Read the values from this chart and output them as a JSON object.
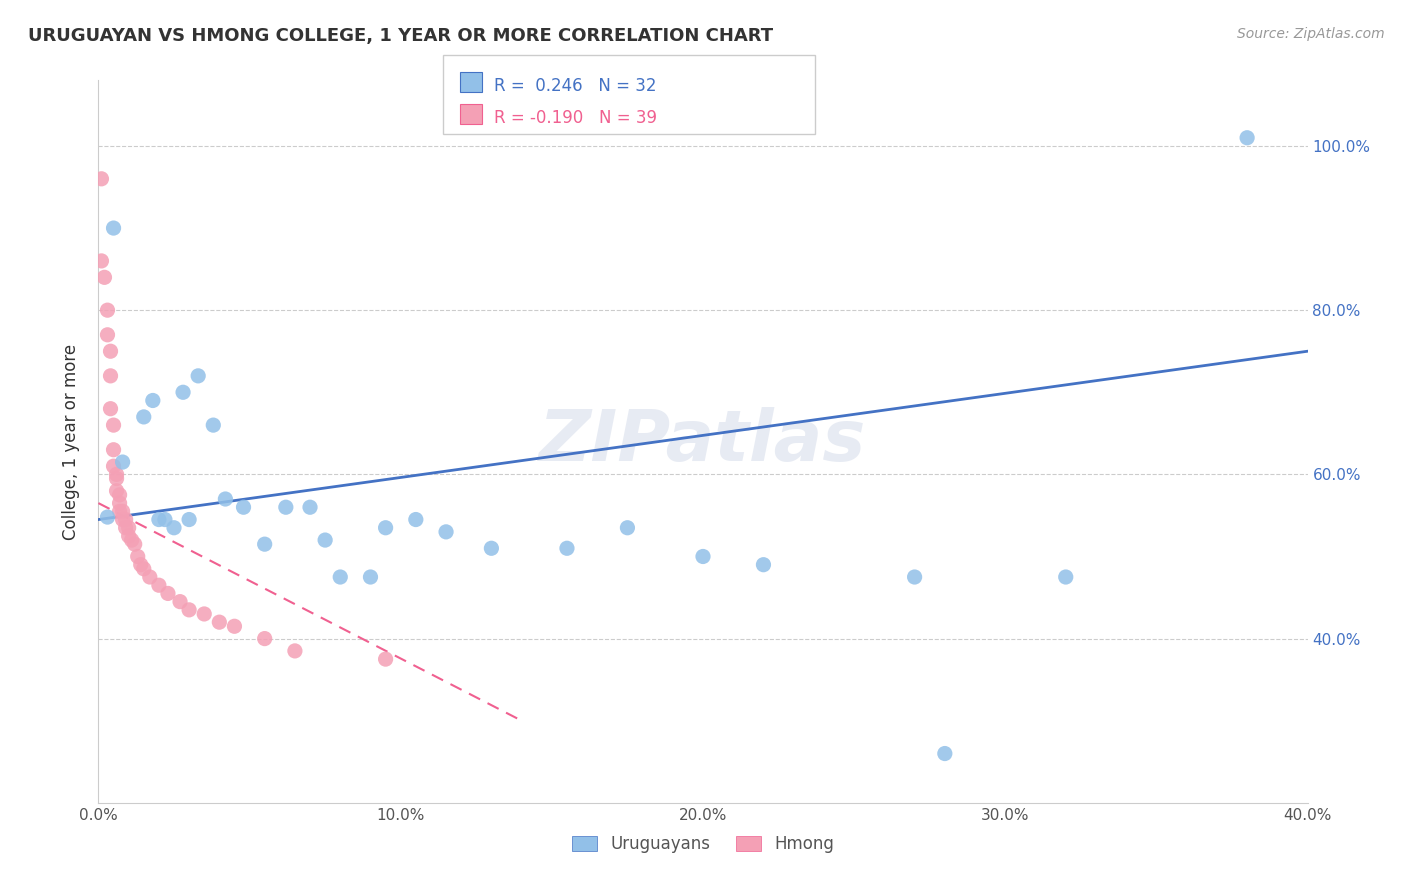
{
  "title": "URUGUAYAN VS HMONG COLLEGE, 1 YEAR OR MORE CORRELATION CHART",
  "source_text": "Source: ZipAtlas.com",
  "ylabel": "College, 1 year or more",
  "xlim": [
    0.0,
    0.4
  ],
  "ylim": [
    0.2,
    1.08
  ],
  "xtick_labels": [
    "0.0%",
    "10.0%",
    "20.0%",
    "30.0%",
    "40.0%"
  ],
  "xtick_vals": [
    0.0,
    0.1,
    0.2,
    0.3,
    0.4
  ],
  "ytick_labels": [
    "40.0%",
    "60.0%",
    "80.0%",
    "100.0%"
  ],
  "ytick_vals": [
    0.4,
    0.6,
    0.8,
    1.0
  ],
  "legend_blue_label": "Uruguayans",
  "legend_pink_label": "Hmong",
  "R_blue": 0.246,
  "N_blue": 32,
  "R_pink": -0.19,
  "N_pink": 39,
  "watermark": "ZIPatlas",
  "blue_color": "#92C0E8",
  "pink_color": "#F4A0B5",
  "blue_line_color": "#4472C4",
  "pink_line_color": "#F06090",
  "uruguayan_x": [
    0.003,
    0.005,
    0.008,
    0.015,
    0.018,
    0.02,
    0.022,
    0.025,
    0.028,
    0.03,
    0.033,
    0.038,
    0.042,
    0.048,
    0.055,
    0.062,
    0.07,
    0.075,
    0.08,
    0.09,
    0.095,
    0.105,
    0.115,
    0.13,
    0.155,
    0.175,
    0.2,
    0.22,
    0.27,
    0.28,
    0.32,
    0.38
  ],
  "uruguayan_y": [
    0.548,
    0.9,
    0.615,
    0.67,
    0.69,
    0.545,
    0.545,
    0.535,
    0.7,
    0.545,
    0.72,
    0.66,
    0.57,
    0.56,
    0.515,
    0.56,
    0.56,
    0.52,
    0.475,
    0.475,
    0.535,
    0.545,
    0.53,
    0.51,
    0.51,
    0.535,
    0.5,
    0.49,
    0.475,
    0.26,
    0.475,
    1.01
  ],
  "hmong_x": [
    0.001,
    0.001,
    0.002,
    0.003,
    0.003,
    0.004,
    0.004,
    0.004,
    0.005,
    0.005,
    0.005,
    0.006,
    0.006,
    0.006,
    0.007,
    0.007,
    0.007,
    0.008,
    0.008,
    0.009,
    0.009,
    0.01,
    0.01,
    0.011,
    0.012,
    0.013,
    0.014,
    0.015,
    0.017,
    0.02,
    0.023,
    0.027,
    0.03,
    0.035,
    0.04,
    0.045,
    0.055,
    0.065,
    0.095
  ],
  "hmong_y": [
    0.96,
    0.86,
    0.84,
    0.8,
    0.77,
    0.75,
    0.72,
    0.68,
    0.66,
    0.63,
    0.61,
    0.6,
    0.595,
    0.58,
    0.575,
    0.565,
    0.555,
    0.555,
    0.545,
    0.545,
    0.535,
    0.535,
    0.525,
    0.52,
    0.515,
    0.5,
    0.49,
    0.485,
    0.475,
    0.465,
    0.455,
    0.445,
    0.435,
    0.43,
    0.42,
    0.415,
    0.4,
    0.385,
    0.375
  ],
  "blue_line_x": [
    0.0,
    0.4
  ],
  "blue_line_y": [
    0.545,
    0.75
  ],
  "pink_line_x": [
    0.0,
    0.14
  ],
  "pink_line_y": [
    0.565,
    0.3
  ]
}
